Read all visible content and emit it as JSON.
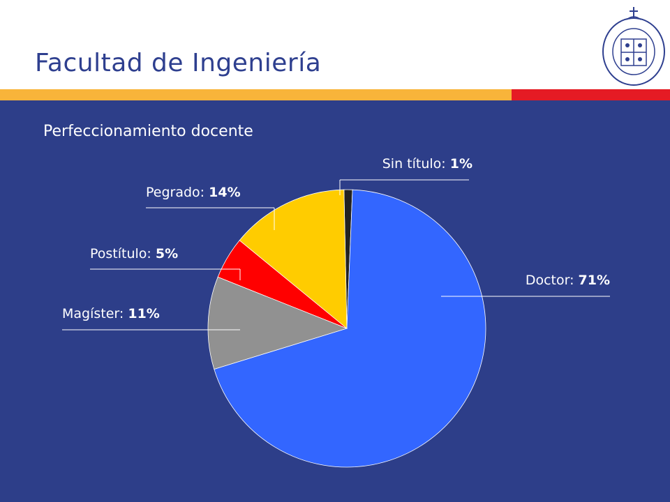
{
  "header": {
    "title": "Facultad de Ingeniería",
    "logo_name": "Pontificia Universidad Católica de Chile seal",
    "logo_text": "PONTIFICIA UNIVERSIDAD CATOLICA DE CHILE"
  },
  "colors": {
    "header_bg": "#ffffff",
    "title": "#2e3f8f",
    "accent_yellow": "#f8b43a",
    "accent_red": "#e51b24",
    "panel_bg": "#2d3e89"
  },
  "subtitle": "Perfeccionamiento docente",
  "chart_data": {
    "type": "pie",
    "title": "",
    "slices": [
      {
        "label": "Sin título",
        "value": 1,
        "display": "1%",
        "color": "#222222"
      },
      {
        "label": "Doctor",
        "value": 71,
        "display": "71%",
        "color": "#3366ff"
      },
      {
        "label": "Magíster",
        "value": 11,
        "display": "11%",
        "color": "#919191"
      },
      {
        "label": "Postítulo",
        "value": 5,
        "display": "5%",
        "color": "#ff0000"
      },
      {
        "label": "Pegrado",
        "value": 14,
        "display": "14%",
        "color": "#ffcc00"
      }
    ],
    "legend": "none",
    "label_style": "outside with leader lines"
  }
}
